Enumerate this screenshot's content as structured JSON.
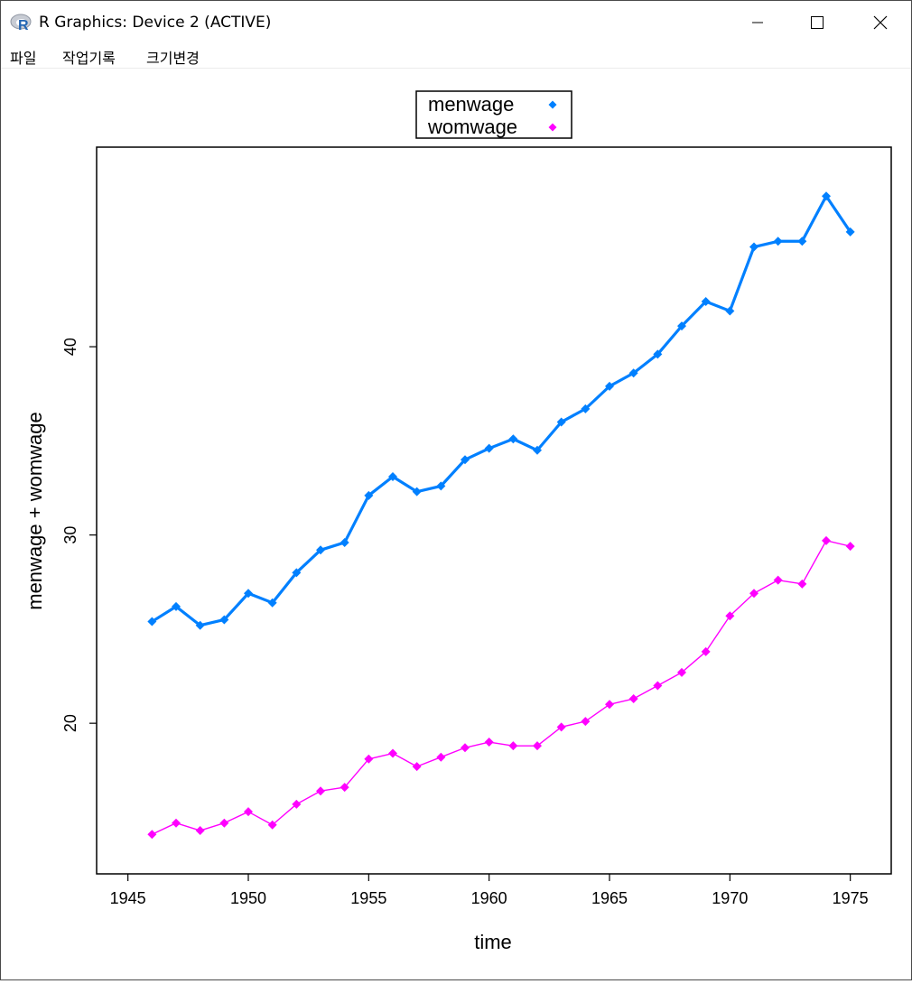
{
  "window": {
    "title": "R Graphics: Device 2 (ACTIVE)",
    "app_icon": "r-logo-icon",
    "controls": {
      "minimize": "minimize-icon",
      "maximize": "maximize-icon",
      "close": "close-icon"
    }
  },
  "menu": {
    "items": [
      {
        "label": "파일"
      },
      {
        "label": "작업기록"
      },
      {
        "label": "크기변경"
      }
    ]
  },
  "colors": {
    "menwage": "#0080ff",
    "womwage": "#ff00ff",
    "axis": "#000000"
  },
  "chart_data": {
    "type": "line",
    "title": "",
    "xlabel": "time",
    "ylabel": "menwage + womwage",
    "xlim": [
      1943.7,
      1976.7
    ],
    "ylim": [
      12.0,
      50.6
    ],
    "x_ticks": [
      1945,
      1950,
      1955,
      1960,
      1965,
      1970,
      1975
    ],
    "y_ticks": [
      20,
      30,
      40
    ],
    "grid": false,
    "legend_position": "top-center",
    "x": [
      1946,
      1947,
      1948,
      1949,
      1950,
      1951,
      1952,
      1953,
      1954,
      1955,
      1956,
      1957,
      1958,
      1959,
      1960,
      1961,
      1962,
      1963,
      1964,
      1965,
      1966,
      1967,
      1968,
      1969,
      1970,
      1971,
      1972,
      1973,
      1974,
      1975
    ],
    "series": [
      {
        "name": "menwage",
        "color": "#0080ff",
        "values": [
          25.4,
          26.2,
          25.2,
          25.5,
          26.9,
          26.4,
          28.0,
          29.2,
          29.6,
          32.1,
          33.1,
          32.3,
          32.6,
          34.0,
          34.6,
          35.1,
          34.5,
          36.0,
          36.7,
          37.9,
          38.6,
          39.6,
          41.1,
          42.4,
          41.9,
          45.3,
          45.6,
          45.6,
          48.0,
          46.1
        ]
      },
      {
        "name": "womwage",
        "color": "#ff00ff",
        "values": [
          14.1,
          14.7,
          14.3,
          14.7,
          15.3,
          14.6,
          15.7,
          16.4,
          16.6,
          18.1,
          18.4,
          17.7,
          18.2,
          18.7,
          19.0,
          18.8,
          18.8,
          19.8,
          20.1,
          21.0,
          21.3,
          22.0,
          22.7,
          23.8,
          25.7,
          26.9,
          27.6,
          27.4,
          29.7,
          29.4
        ]
      }
    ]
  }
}
